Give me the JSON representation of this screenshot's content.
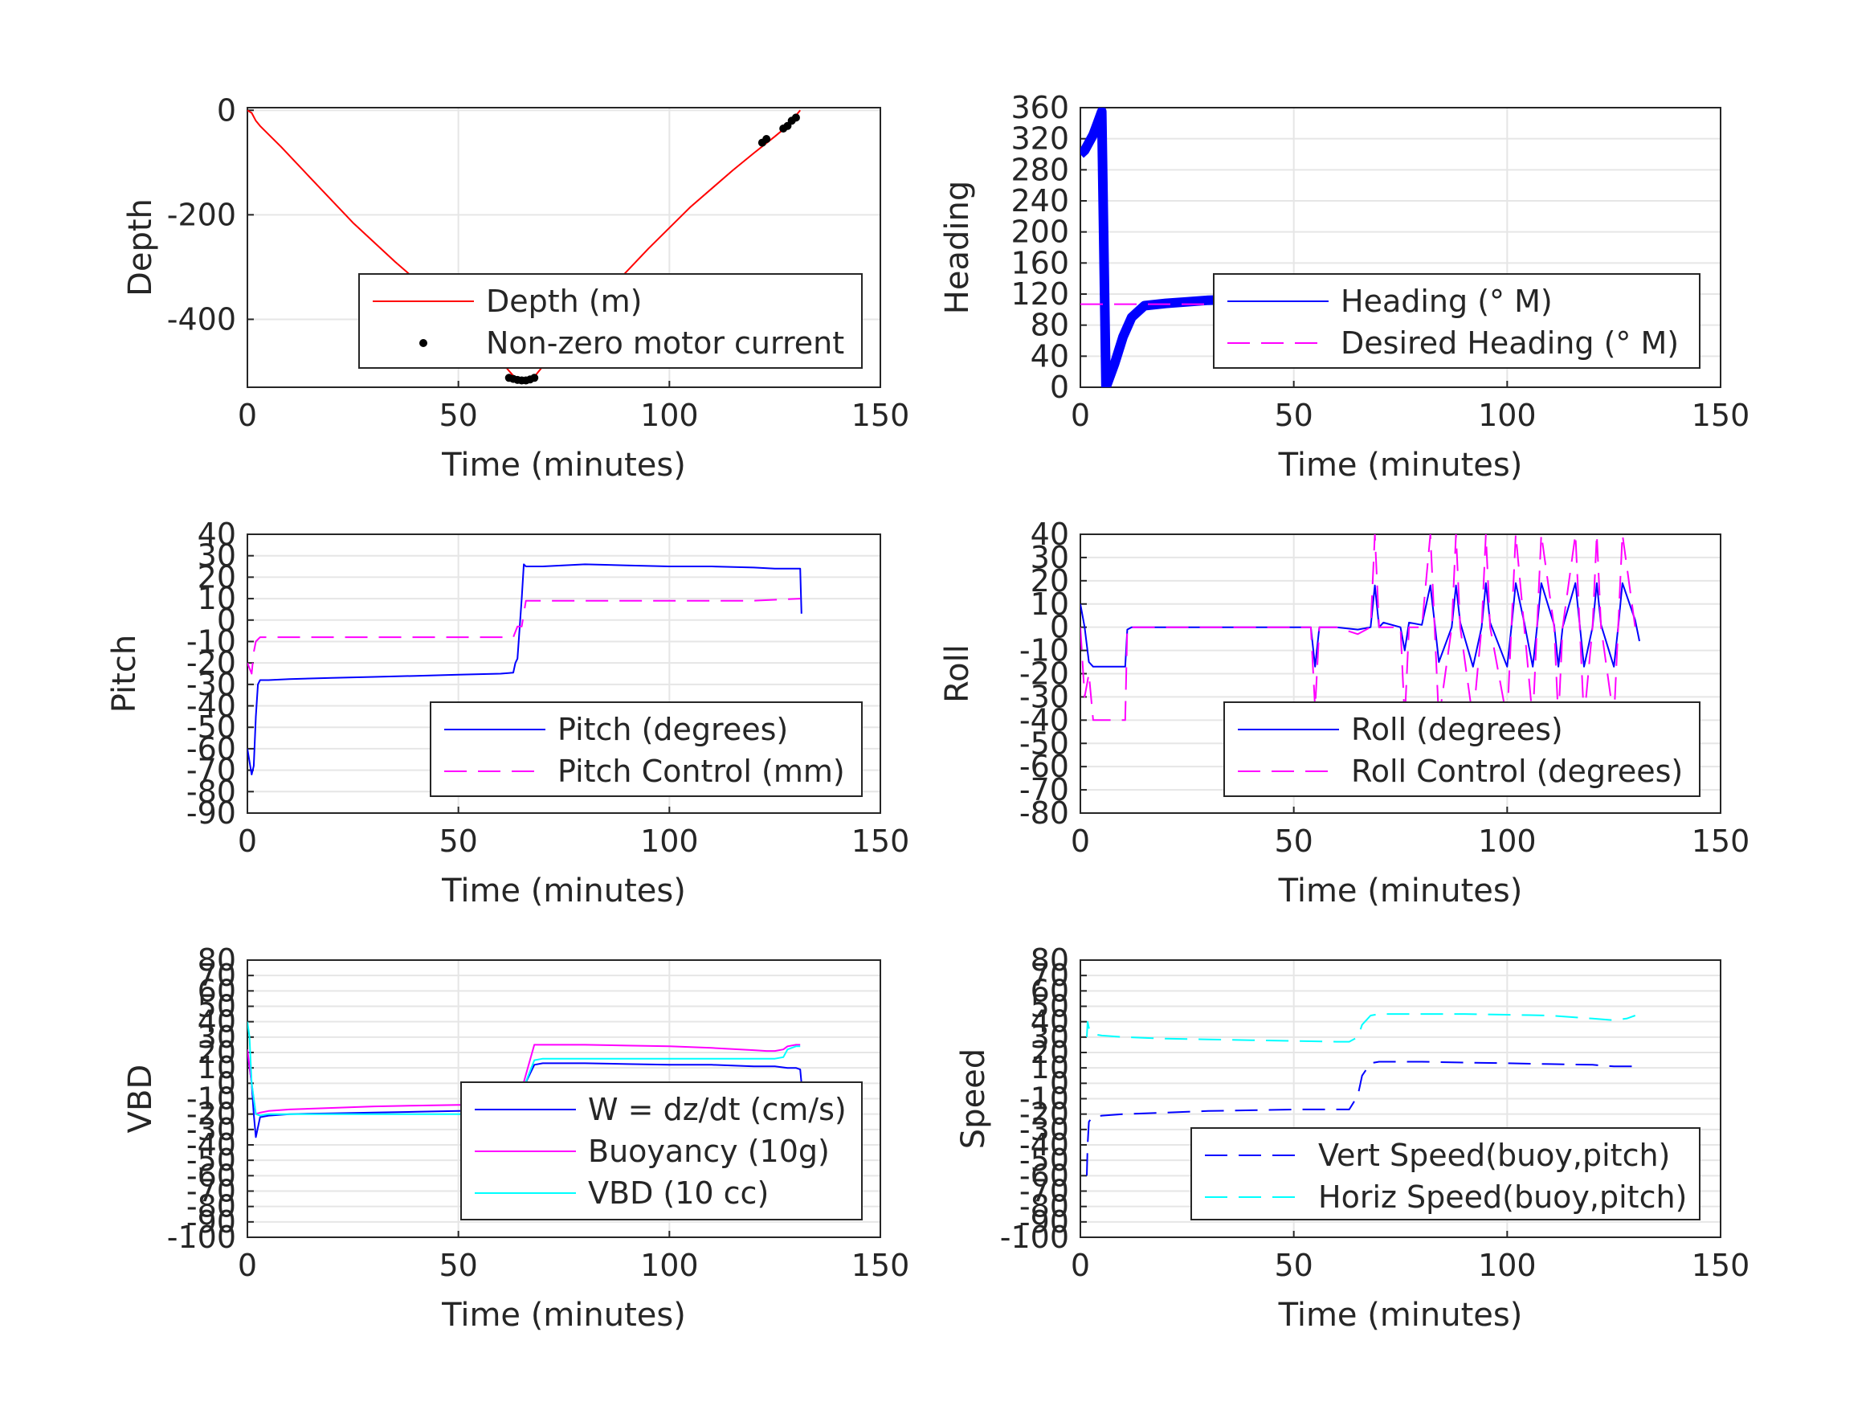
{
  "figure": {
    "background": "#ffffff",
    "grid_color": "#e6e6e6",
    "axis_color": "#262626"
  },
  "chart_data": [
    {
      "id": "depth",
      "type": "line",
      "xlabel": "Time (minutes)",
      "ylabel": "Depth",
      "xlim": [
        0,
        150
      ],
      "ylim": [
        -530,
        5
      ],
      "xticks": [
        0,
        50,
        100,
        150
      ],
      "yticks": [
        0,
        -200,
        -400
      ],
      "grid": true,
      "legend_position": "bottom-right",
      "series": [
        {
          "name": "Depth (m)",
          "style": "solid",
          "color": "#ff0000",
          "x": [
            0,
            1,
            2,
            3,
            8,
            15,
            25,
            35,
            45,
            55,
            60,
            63,
            65,
            66,
            68,
            70,
            75,
            85,
            95,
            105,
            115,
            120,
            125,
            128,
            131
          ],
          "y": [
            0,
            -5,
            -20,
            -30,
            -70,
            -130,
            -215,
            -290,
            -360,
            -440,
            -480,
            -508,
            -520,
            -520,
            -510,
            -490,
            -440,
            -350,
            -265,
            -185,
            -115,
            -82,
            -50,
            -30,
            0
          ]
        },
        {
          "name": "Non-zero motor current",
          "style": "markers",
          "color": "#000000",
          "x": [
            62,
            63,
            64,
            65,
            66,
            67,
            68,
            122,
            123,
            127,
            128,
            129,
            130
          ],
          "y": [
            -512,
            -514,
            -516,
            -517,
            -517,
            -515,
            -512,
            -62,
            -55,
            -35,
            -30,
            -20,
            -14
          ]
        }
      ]
    },
    {
      "id": "heading",
      "type": "line",
      "xlabel": "Time (minutes)",
      "ylabel": "Heading",
      "xlim": [
        0,
        150
      ],
      "ylim": [
        0,
        360
      ],
      "xticks": [
        0,
        50,
        100,
        150
      ],
      "yticks": [
        0,
        40,
        80,
        120,
        160,
        200,
        240,
        280,
        320,
        360
      ],
      "grid": true,
      "legend_position": "bottom-right",
      "series": [
        {
          "name": "Heading (° M)",
          "style": "thick",
          "color": "#0000ff",
          "x": [
            0,
            1,
            2,
            3,
            4,
            5,
            6,
            8,
            10,
            12,
            15,
            20,
            25,
            30,
            35,
            40,
            45,
            50,
            55,
            60,
            65,
            70,
            75,
            80,
            85,
            90,
            95,
            100,
            105,
            110,
            115,
            120,
            125,
            130,
            132
          ],
          "y": [
            300,
            305,
            315,
            325,
            340,
            355,
            0,
            30,
            65,
            90,
            105,
            108,
            110,
            112,
            113,
            110,
            105,
            100,
            98,
            103,
            108,
            106,
            104,
            103,
            100,
            101,
            103,
            104,
            104,
            102,
            101,
            103,
            104,
            102,
            104
          ]
        },
        {
          "name": "Desired Heading (° M)",
          "style": "dashed",
          "color": "#ff00ff",
          "x": [
            0,
            132
          ],
          "y": [
            107,
            107
          ]
        }
      ]
    },
    {
      "id": "pitch",
      "type": "line",
      "xlabel": "Time (minutes)",
      "ylabel": "Pitch",
      "xlim": [
        0,
        150
      ],
      "ylim": [
        -90,
        40
      ],
      "xticks": [
        0,
        50,
        100,
        150
      ],
      "yticks": [
        40,
        30,
        20,
        10,
        0,
        -10,
        -20,
        -30,
        -40,
        -50,
        -60,
        -70,
        -80,
        -90
      ],
      "grid": true,
      "legend_position": "bottom-right",
      "series": [
        {
          "name": "Pitch (degrees)",
          "style": "solid",
          "color": "#0000ff",
          "x": [
            0,
            0.5,
            1,
            1.5,
            2,
            2.5,
            3,
            5,
            10,
            20,
            30,
            40,
            50,
            60,
            63,
            63.5,
            64,
            65,
            65.5,
            66,
            70,
            80,
            90,
            100,
            110,
            120,
            125,
            130,
            131,
            131.3
          ],
          "y": [
            -60,
            -66,
            -72,
            -68,
            -45,
            -30,
            -28,
            -28,
            -27.5,
            -27,
            -26.5,
            -26,
            -25.5,
            -25,
            -24.5,
            -20,
            -18,
            10,
            26,
            25,
            25,
            26,
            25.5,
            25,
            25,
            24.5,
            24,
            24,
            24,
            3
          ]
        },
        {
          "name": "Pitch Control (mm)",
          "style": "dashed",
          "color": "#ff00ff",
          "x": [
            0,
            1,
            1.5,
            2,
            3,
            10,
            20,
            40,
            60,
            63,
            64,
            65,
            66,
            67,
            70,
            80,
            100,
            120,
            131
          ],
          "y": [
            -20,
            -25,
            -15,
            -10,
            -8,
            -8,
            -8,
            -8,
            -8,
            -8,
            -3,
            -3,
            9,
            9,
            9,
            9,
            9,
            9,
            10
          ]
        }
      ]
    },
    {
      "id": "roll",
      "type": "line",
      "xlabel": "Time (minutes)",
      "ylabel": "Roll",
      "xlim": [
        0,
        150
      ],
      "ylim": [
        -80,
        40
      ],
      "xticks": [
        0,
        50,
        100,
        150
      ],
      "yticks": [
        40,
        30,
        20,
        10,
        0,
        -10,
        -20,
        -30,
        -40,
        -50,
        -60,
        -70,
        -80
      ],
      "grid": true,
      "legend_position": "bottom-right",
      "series": [
        {
          "name": "Roll (degrees)",
          "style": "solid",
          "color": "#0000ff",
          "x": [
            0,
            1,
            2,
            3,
            10,
            10.5,
            11,
            12,
            15,
            30,
            53,
            54,
            55,
            56,
            60,
            65,
            68,
            69,
            70,
            71,
            75,
            76,
            77,
            80,
            82,
            83,
            84,
            87,
            88,
            89,
            92,
            94,
            95,
            96,
            100,
            101,
            102,
            104,
            106,
            107,
            108,
            111,
            112,
            113,
            116,
            117,
            118,
            120,
            121,
            122,
            125,
            126,
            127,
            130,
            131
          ],
          "y": [
            10,
            0,
            -15,
            -17,
            -17,
            -17,
            -1,
            0,
            0,
            0,
            0,
            0,
            -17,
            0,
            0,
            -1,
            0,
            18,
            0,
            2,
            0,
            -10,
            2,
            1,
            18,
            2,
            -15,
            0,
            18,
            2,
            -17,
            0,
            19,
            2,
            -17,
            0,
            19,
            2,
            -17,
            0,
            19,
            1,
            -17,
            0,
            19,
            1,
            -17,
            0,
            19,
            1,
            -17,
            0,
            19,
            3,
            -6
          ]
        },
        {
          "name": "Roll Control (degrees)",
          "style": "dashed",
          "color": "#ff00ff",
          "x": [
            0,
            1,
            2,
            3,
            10,
            10.5,
            11,
            12,
            15,
            30,
            53,
            54,
            55,
            56,
            60,
            65,
            68,
            69,
            70,
            71,
            75,
            76,
            77,
            80,
            82,
            83,
            84,
            87,
            88,
            89,
            92,
            94,
            95,
            96,
            100,
            101,
            102,
            104,
            106,
            107,
            108,
            111,
            112,
            113,
            116,
            117,
            118,
            120,
            121,
            122,
            125,
            126,
            127,
            130,
            131
          ],
          "y": [
            0,
            -30,
            -20,
            -40,
            -40,
            -40,
            0,
            0,
            0,
            0,
            0,
            0,
            -35,
            0,
            0,
            -3,
            0,
            40,
            0,
            0,
            0,
            -40,
            0,
            0,
            40,
            0,
            -40,
            0,
            40,
            0,
            -40,
            0,
            40,
            0,
            -40,
            0,
            40,
            0,
            -40,
            0,
            40,
            0,
            -40,
            0,
            40,
            0,
            -40,
            0,
            40,
            0,
            -40,
            0,
            40,
            0,
            0
          ]
        }
      ]
    },
    {
      "id": "vbd",
      "type": "line",
      "xlabel": "Time (minutes)",
      "ylabel": "VBD",
      "xlim": [
        0,
        150
      ],
      "ylim": [
        -100,
        80
      ],
      "xticks": [
        0,
        50,
        100,
        150
      ],
      "yticks": [
        80,
        70,
        60,
        50,
        40,
        30,
        20,
        10,
        0,
        -10,
        -20,
        -30,
        -40,
        -50,
        -60,
        -70,
        -80,
        -90,
        -100
      ],
      "grid": true,
      "legend_position": "bottom-right",
      "series": [
        {
          "name": "W = dz/dt (cm/s)",
          "style": "solid",
          "color": "#0000ff",
          "x": [
            0,
            1,
            1.5,
            2,
            3,
            5,
            10,
            20,
            30,
            40,
            50,
            60,
            63,
            65,
            68,
            70,
            80,
            90,
            100,
            110,
            120,
            125,
            128,
            130,
            131,
            131.3
          ],
          "y": [
            20,
            0,
            -20,
            -35,
            -22,
            -21,
            -20,
            -19.5,
            -19,
            -18.5,
            -18,
            -17.5,
            -17,
            -5,
            12,
            13,
            13,
            12.5,
            12,
            12,
            11,
            11,
            10,
            10,
            9,
            0
          ]
        },
        {
          "name": "Buoyancy (10g)",
          "style": "solid",
          "color": "#ff00ff",
          "x": [
            0,
            1,
            2,
            3,
            5,
            10,
            20,
            30,
            40,
            50,
            60,
            63,
            65,
            68,
            70,
            80,
            90,
            100,
            110,
            120,
            123,
            125,
            127,
            128,
            130,
            131
          ],
          "y": [
            22,
            0,
            -20,
            -19,
            -18,
            -17,
            -16,
            -15,
            -14.5,
            -14,
            -14,
            -14,
            -4,
            25,
            25,
            25,
            24.5,
            24,
            23,
            21.5,
            21,
            21,
            22,
            24,
            25,
            25
          ]
        },
        {
          "name": "VBD (10 cc)",
          "style": "solid",
          "color": "#00ffff",
          "x": [
            0,
            0.5,
            1,
            2,
            3,
            5,
            10,
            20,
            30,
            40,
            50,
            60,
            63,
            65,
            68,
            70,
            80,
            90,
            100,
            110,
            120,
            125,
            127,
            128,
            130,
            131
          ],
          "y": [
            40,
            30,
            0,
            -20,
            -21,
            -20,
            -20,
            -20,
            -20,
            -20,
            -20,
            -20,
            -20,
            -6,
            15,
            16,
            16,
            16,
            16,
            16,
            16,
            16,
            17,
            22,
            24,
            24
          ]
        }
      ]
    },
    {
      "id": "speed",
      "type": "line",
      "xlabel": "Time (minutes)",
      "ylabel": "Speed",
      "xlim": [
        0,
        150
      ],
      "ylim": [
        -100,
        80
      ],
      "xticks": [
        0,
        50,
        100,
        150
      ],
      "yticks": [
        80,
        70,
        60,
        50,
        40,
        30,
        20,
        10,
        0,
        -10,
        -20,
        -30,
        -40,
        -50,
        -60,
        -70,
        -80,
        -90,
        -100
      ],
      "grid": true,
      "legend_position": "bottom-right",
      "series": [
        {
          "name": "Vert Speed(buoy,pitch)",
          "style": "dashed",
          "color": "#0000ff",
          "x": [
            1.5,
            1.7,
            2,
            2.5,
            3,
            5,
            10,
            20,
            30,
            40,
            50,
            60,
            63,
            65,
            66,
            68,
            70,
            80,
            90,
            100,
            110,
            120,
            125,
            128,
            130
          ],
          "y": [
            -60,
            -40,
            -25,
            -23,
            -22,
            -21,
            -20,
            -19,
            -18,
            -17.5,
            -17,
            -17,
            -17,
            -8,
            5,
            13,
            14,
            14,
            13.5,
            13,
            12.5,
            12,
            11,
            11,
            11
          ]
        },
        {
          "name": "Horiz Speed(buoy,pitch)",
          "style": "dashed",
          "color": "#00ffff",
          "x": [
            1.5,
            1.7,
            2,
            2.5,
            3,
            5,
            10,
            20,
            30,
            40,
            50,
            60,
            63,
            65,
            66,
            68,
            70,
            80,
            90,
            100,
            110,
            120,
            125,
            128,
            130
          ],
          "y": [
            30,
            40,
            36,
            33,
            32,
            31,
            30,
            29,
            28.5,
            28,
            27.5,
            27,
            27,
            30,
            38,
            44,
            45,
            45,
            45,
            44.5,
            44,
            42,
            41,
            42,
            44
          ]
        }
      ]
    }
  ]
}
